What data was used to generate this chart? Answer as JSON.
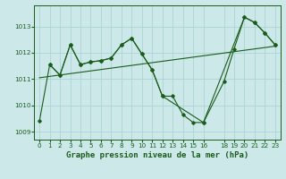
{
  "title": "Graphe pression niveau de la mer (hPa)",
  "bg_color": "#cce8e8",
  "plot_bg": "#cce8e8",
  "grid_color": "#aad4d4",
  "line_color": "#1a5c1a",
  "xlim": [
    -0.5,
    23.5
  ],
  "ylim": [
    1008.7,
    1013.8
  ],
  "yticks": [
    1009,
    1010,
    1011,
    1012,
    1013
  ],
  "xticks": [
    0,
    1,
    2,
    3,
    4,
    5,
    6,
    7,
    8,
    9,
    10,
    11,
    12,
    13,
    14,
    15,
    16,
    18,
    19,
    20,
    21,
    22,
    23
  ],
  "xtick_labels": [
    "0",
    "1",
    "2",
    "3",
    "4",
    "5",
    "6",
    "7",
    "8",
    "9",
    "10",
    "11",
    "12",
    "13",
    "14",
    "15",
    "16",
    "18",
    "19",
    "20",
    "21",
    "22",
    "23"
  ],
  "series_main_x": [
    0,
    1,
    2,
    3,
    4,
    5,
    6,
    7,
    8,
    9,
    10,
    11,
    12,
    13,
    14,
    15,
    16,
    18,
    19,
    20,
    21,
    22,
    23
  ],
  "series_main_y": [
    1009.4,
    1011.55,
    1011.15,
    1012.3,
    1011.55,
    1011.65,
    1011.7,
    1011.8,
    1012.3,
    1012.55,
    1011.95,
    1011.35,
    1010.35,
    1010.35,
    1009.65,
    1009.35,
    1009.35,
    1010.9,
    1012.15,
    1013.35,
    1013.15,
    1012.75,
    1012.3
  ],
  "series2_x": [
    1,
    2,
    3,
    4,
    5,
    6,
    7,
    8,
    9,
    10,
    11,
    12,
    16,
    20,
    21,
    22,
    23
  ],
  "series2_y": [
    1011.55,
    1011.15,
    1012.3,
    1011.55,
    1011.65,
    1011.7,
    1011.8,
    1012.3,
    1012.55,
    1011.95,
    1011.35,
    1010.35,
    1009.35,
    1013.35,
    1013.15,
    1012.75,
    1012.3
  ],
  "trend_x": [
    0,
    23
  ],
  "trend_y": [
    1011.05,
    1012.25
  ],
  "ylabel_fontsize": 5.5,
  "xlabel_fontsize": 6.5,
  "tick_fontsize": 5.2
}
